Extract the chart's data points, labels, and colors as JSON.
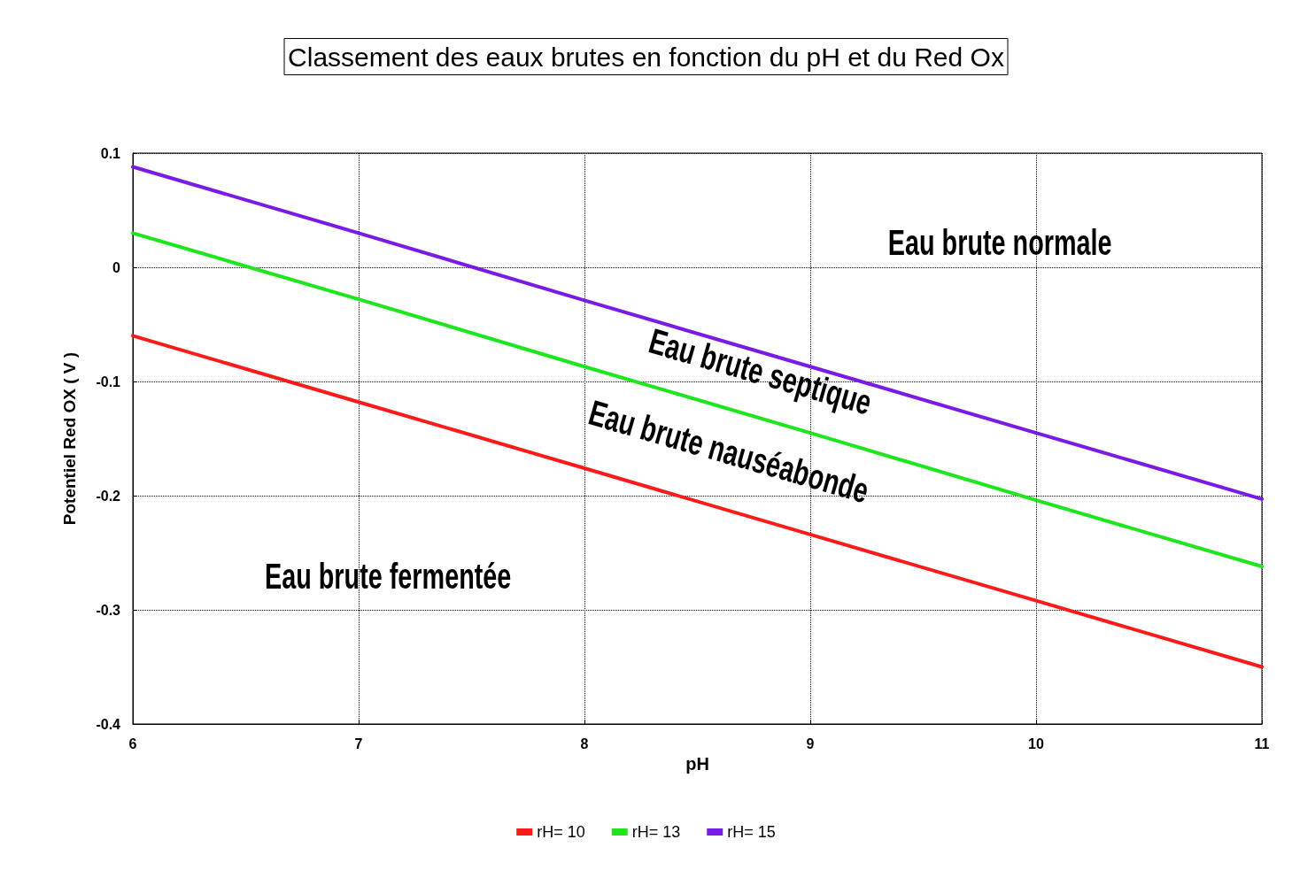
{
  "chart_data": {
    "type": "line",
    "title": "Classement des eaux brutes en fonction du pH et du Red Ox",
    "xlabel": "pH",
    "ylabel": "Potentiel Red OX ( V )",
    "x": [
      6,
      7,
      8,
      9,
      10,
      11
    ],
    "series": [
      {
        "name": "rH= 10",
        "color": "#ff1a1a",
        "values": [
          -0.06,
          -0.118,
          -0.176,
          -0.234,
          -0.292,
          -0.35
        ]
      },
      {
        "name": "rH= 13",
        "color": "#1ee61e",
        "values": [
          0.03,
          -0.028,
          -0.087,
          -0.145,
          -0.204,
          -0.262
        ]
      },
      {
        "name": "rH= 15",
        "color": "#7a1ae6",
        "values": [
          0.088,
          0.03,
          -0.029,
          -0.087,
          -0.145,
          -0.203
        ]
      }
    ],
    "xlim": [
      6,
      11
    ],
    "xticks": [
      6,
      7,
      8,
      9,
      10,
      11
    ],
    "ylim": [
      -0.4,
      0.1
    ],
    "yticks": [
      -0.4,
      -0.3,
      -0.2,
      -0.1,
      0,
      0.1
    ],
    "grid": true,
    "legend": "bottom",
    "marker": "none",
    "line_style": "solid",
    "annotations": [
      "Eau brute normale",
      "Eau brute septique",
      "Eau brute nauséabonde",
      "Eau brute fermentée"
    ]
  }
}
